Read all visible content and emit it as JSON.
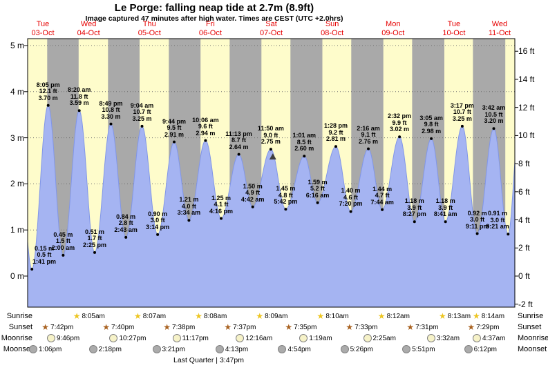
{
  "header": {
    "title": "Le Porge: falling  neap tide at 2.7m (8.9ft)",
    "subtitle": "Image captured 47 minutes after high water. Times are CEST (UTC +2.0hrs)"
  },
  "colors": {
    "day_bg": "#fefccb",
    "night_bg": "#a9a9a9",
    "tide_fill": "#a5b4f2",
    "tide_stroke": "#8196e8",
    "grid": "#6f6f6f",
    "date_red": "#e60000",
    "marker": "#3f3f3f",
    "sunrise_star": "#edc51f",
    "sunset_star": "#a8611f",
    "moonrise_fill": "#f6f2c8",
    "moonset_fill": "#ababab"
  },
  "chart_data": {
    "type": "area",
    "title": "Le Porge tide height curve",
    "x_epoch_note": "hours since 00:00 Tue 03-Oct",
    "x_domain_hours": [
      12,
      204
    ],
    "ylim_m": [
      -0.67,
      5.15
    ],
    "grid": "dotted horizontal lines at each metre",
    "y_axis_left": {
      "unit": "m",
      "ticks": [
        {
          "label": "5 m",
          "m": 5
        },
        {
          "label": "4 m",
          "m": 4
        },
        {
          "label": "3 m",
          "m": 3
        },
        {
          "label": "2 m",
          "m": 2
        },
        {
          "label": "1 m",
          "m": 1
        },
        {
          "label": "0 m",
          "m": 0
        }
      ]
    },
    "y_axis_right": {
      "unit": "ft",
      "ticks": [
        {
          "label": "16 ft",
          "ft": 16
        },
        {
          "label": "14 ft",
          "ft": 14
        },
        {
          "label": "12 ft",
          "ft": 12
        },
        {
          "label": "10 ft",
          "ft": 10
        },
        {
          "label": "8 ft",
          "ft": 8
        },
        {
          "label": "6 ft",
          "ft": 6
        },
        {
          "label": "4 ft",
          "ft": 4
        },
        {
          "label": "2 ft",
          "ft": 2
        },
        {
          "label": "0 ft",
          "ft": 0
        },
        {
          "label": "-2 ft",
          "ft": -2
        }
      ]
    },
    "days": [
      {
        "name": "Tue",
        "date": "03-Oct",
        "t": 18
      },
      {
        "name": "Wed",
        "date": "04-Oct",
        "t": 36
      },
      {
        "name": "Thu",
        "date": "05-Oct",
        "t": 60
      },
      {
        "name": "Fri",
        "date": "06-Oct",
        "t": 84
      },
      {
        "name": "Sat",
        "date": "07-Oct",
        "t": 108
      },
      {
        "name": "Sun",
        "date": "08-Oct",
        "t": 132
      },
      {
        "name": "Mon",
        "date": "09-Oct",
        "t": 156
      },
      {
        "name": "Tue",
        "date": "10-Oct",
        "t": 180
      },
      {
        "name": "Wed",
        "date": "11-Oct",
        "t": 198
      }
    ],
    "tide_extremes": [
      {
        "type": "low",
        "time": "1:41 pm",
        "t": 13.683,
        "m": 0.15,
        "ft": 0.5
      },
      {
        "type": "high",
        "time": "8:05 pm",
        "t": 20.083,
        "m": 3.7,
        "ft": 12.1
      },
      {
        "type": "low",
        "time": "2:00 am",
        "t": 26.0,
        "m": 0.45,
        "ft": 1.5
      },
      {
        "type": "high",
        "time": "8:20 am",
        "t": 32.333,
        "m": 3.59,
        "ft": 11.8
      },
      {
        "type": "low",
        "time": "2:25 pm",
        "t": 38.417,
        "m": 0.51,
        "ft": 1.7
      },
      {
        "type": "high",
        "time": "8:49 pm",
        "t": 44.817,
        "m": 3.3,
        "ft": 10.8
      },
      {
        "type": "low",
        "time": "2:43 am",
        "t": 50.717,
        "m": 0.84,
        "ft": 2.8
      },
      {
        "type": "high",
        "time": "9:04 am",
        "t": 57.067,
        "m": 3.25,
        "ft": 10.7
      },
      {
        "type": "low",
        "time": "3:14 pm",
        "t": 63.233,
        "m": 0.9,
        "ft": 3.0
      },
      {
        "type": "high",
        "time": "9:44 pm",
        "t": 69.733,
        "m": 2.91,
        "ft": 9.5
      },
      {
        "type": "low",
        "time": "3:34 am",
        "t": 75.567,
        "m": 1.21,
        "ft": 4.0
      },
      {
        "type": "high",
        "time": "10:06 am",
        "t": 82.1,
        "m": 2.94,
        "ft": 9.6
      },
      {
        "type": "low",
        "time": "4:16 pm",
        "t": 88.267,
        "m": 1.25,
        "ft": 4.1
      },
      {
        "type": "high",
        "time": "11:13 pm",
        "t": 95.217,
        "m": 2.64,
        "ft": 8.7
      },
      {
        "type": "low",
        "time": "4:42 am",
        "t": 100.7,
        "m": 1.5,
        "ft": 4.9
      },
      {
        "type": "high",
        "time": "11:50 am",
        "t": 107.833,
        "m": 2.75,
        "ft": 9.0
      },
      {
        "type": "low",
        "time": "5:42 pm",
        "t": 113.7,
        "m": 1.45,
        "ft": 4.8
      },
      {
        "type": "high",
        "time": "1:01 am",
        "t": 121.017,
        "m": 2.6,
        "ft": 8.5
      },
      {
        "type": "low",
        "time": "6:16 am",
        "t": 126.267,
        "m": 1.59,
        "ft": 5.2
      },
      {
        "type": "high",
        "time": "1:28 pm",
        "t": 133.467,
        "m": 2.81,
        "ft": 9.2
      },
      {
        "type": "low",
        "time": "7:20 pm",
        "t": 139.333,
        "m": 1.4,
        "ft": 4.6
      },
      {
        "type": "high",
        "time": "2:16 am",
        "t": 146.267,
        "m": 2.76,
        "ft": 9.1
      },
      {
        "type": "low",
        "time": "7:44 am",
        "t": 151.733,
        "m": 1.44,
        "ft": 4.7
      },
      {
        "type": "high",
        "time": "2:32 pm",
        "t": 158.533,
        "m": 3.02,
        "ft": 9.9
      },
      {
        "type": "low",
        "time": "8:27 pm",
        "t": 164.45,
        "m": 1.18,
        "ft": 3.9
      },
      {
        "type": "high",
        "time": "3:05 am",
        "t": 171.083,
        "m": 2.98,
        "ft": 9.8
      },
      {
        "type": "low",
        "time": "8:41 am",
        "t": 176.683,
        "m": 1.18,
        "ft": 3.9
      },
      {
        "type": "high",
        "time": "3:17 pm",
        "t": 183.283,
        "m": 3.25,
        "ft": 10.7
      },
      {
        "type": "low",
        "time": "9:11 pm",
        "t": 189.183,
        "m": 0.92,
        "ft": 3.0
      },
      {
        "type": "high",
        "time": "3:42 am",
        "t": 195.7,
        "m": 3.2,
        "ft": 10.5
      },
      {
        "type": "low",
        "time": "9:21 am",
        "t": 201.35,
        "m": 0.91,
        "ft": 3.0
      }
    ],
    "offscreen_extremes_estimated": [
      {
        "t": 7.6,
        "m": 3.55
      },
      {
        "t": 205.8,
        "m": 3.35
      }
    ],
    "current_time_marker_t": 108.617
  },
  "astro": {
    "row_labels": [
      "Sunrise",
      "Sunset",
      "Moonrise",
      "Moonset"
    ],
    "sunrise": [
      {
        "time": "8:05am",
        "t": 32.083
      },
      {
        "time": "8:07am",
        "t": 56.117
      },
      {
        "time": "8:08am",
        "t": 80.133
      },
      {
        "time": "8:09am",
        "t": 104.15
      },
      {
        "time": "8:10am",
        "t": 128.167
      },
      {
        "time": "8:12am",
        "t": 152.2
      },
      {
        "time": "8:13am",
        "t": 176.217
      },
      {
        "time": "8:14am",
        "t": 200.233
      }
    ],
    "sunset": [
      {
        "time": "7:42pm",
        "t": 19.7
      },
      {
        "time": "7:40pm",
        "t": 43.667
      },
      {
        "time": "7:38pm",
        "t": 67.633
      },
      {
        "time": "7:37pm",
        "t": 91.617
      },
      {
        "time": "7:35pm",
        "t": 115.583
      },
      {
        "time": "7:33pm",
        "t": 139.55
      },
      {
        "time": "7:31pm",
        "t": 163.517
      },
      {
        "time": "7:29pm",
        "t": 187.483
      }
    ],
    "moonrise": [
      {
        "time": "9:46pm",
        "t": 21.767
      },
      {
        "time": "10:27pm",
        "t": 46.45
      },
      {
        "time": "11:17pm",
        "t": 71.283
      },
      {
        "time": "12:16am",
        "t": 96.267
      },
      {
        "time": "1:19am",
        "t": 121.317
      },
      {
        "time": "2:25am",
        "t": 146.417
      },
      {
        "time": "3:32am",
        "t": 171.533
      },
      {
        "time": "4:37am",
        "t": 196.617
      }
    ],
    "moonset": [
      {
        "time": "1:06pm",
        "t": 13.1
      },
      {
        "time": "2:18pm",
        "t": 38.3
      },
      {
        "time": "3:21pm",
        "t": 63.35
      },
      {
        "time": "4:13pm",
        "t": 88.217
      },
      {
        "time": "4:54pm",
        "t": 112.9
      },
      {
        "time": "5:26pm",
        "t": 137.433
      },
      {
        "time": "5:51pm",
        "t": 161.85
      },
      {
        "time": "6:12pm",
        "t": 186.2
      }
    ],
    "moon_phase": "Last Quarter | 3:47pm"
  }
}
